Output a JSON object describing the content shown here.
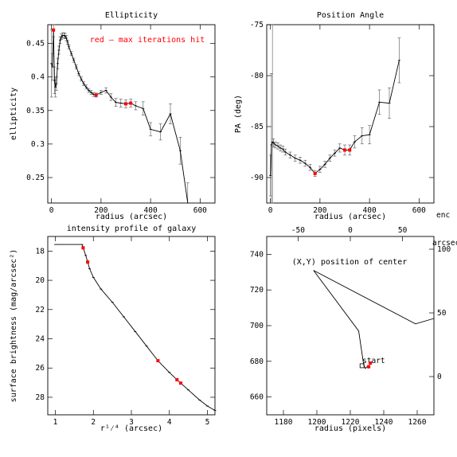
{
  "colors": {
    "axis": "#000000",
    "curve": "#000000",
    "error_bar": "#555555",
    "highlight": "#ff0000"
  },
  "chart_data": [
    {
      "id": "ellipticity",
      "type": "line",
      "title": "Ellipticity",
      "xlabel": "radius (arcsec)",
      "ylabel": "ellipticity",
      "xlim": [
        -15,
        660
      ],
      "ylim": [
        0.212,
        0.478
      ],
      "xticks": [
        0,
        200,
        400,
        600
      ],
      "yticks": [
        0.25,
        0.3,
        0.35,
        0.4,
        0.45
      ],
      "ytick_labels": [
        "0.25",
        "0.3",
        "0.35",
        "0.4",
        "0.45"
      ],
      "annotation": "red – max iterations hit",
      "x": [
        0,
        4,
        8,
        12,
        16,
        20,
        25,
        30,
        35,
        40,
        45,
        50,
        55,
        60,
        65,
        70,
        80,
        90,
        100,
        110,
        120,
        130,
        140,
        150,
        160,
        170,
        180,
        200,
        220,
        240,
        260,
        280,
        300,
        320,
        340,
        370,
        400,
        440,
        480,
        520,
        550
      ],
      "y": [
        0.42,
        0.415,
        0.47,
        0.395,
        0.385,
        0.39,
        0.42,
        0.44,
        0.455,
        0.46,
        0.462,
        0.462,
        0.461,
        0.458,
        0.452,
        0.445,
        0.435,
        0.425,
        0.415,
        0.405,
        0.397,
        0.39,
        0.385,
        0.38,
        0.377,
        0.374,
        0.373,
        0.377,
        0.38,
        0.37,
        0.362,
        0.361,
        0.36,
        0.361,
        0.357,
        0.353,
        0.322,
        0.318,
        0.345,
        0.29,
        0.212
      ],
      "err": [
        0.05,
        0.02,
        0.01,
        0.02,
        0.015,
        0.01,
        0.008,
        0.006,
        0.005,
        0.004,
        0.004,
        0.004,
        0.004,
        0.004,
        0.003,
        0.003,
        0.003,
        0.003,
        0.003,
        0.003,
        0.003,
        0.003,
        0.003,
        0.003,
        0.003,
        0.003,
        0.003,
        0.003,
        0.004,
        0.005,
        0.006,
        0.006,
        0.006,
        0.006,
        0.006,
        0.01,
        0.01,
        0.012,
        0.015,
        0.02,
        0.03
      ],
      "highlighted_x": [
        8,
        180,
        300,
        320
      ]
    },
    {
      "id": "position_angle",
      "type": "line",
      "title": "Position Angle",
      "xlabel": "radius (arcsec)",
      "ylabel": "PA (deg)",
      "xlim": [
        -15,
        660
      ],
      "ylim": [
        -92.5,
        -75
      ],
      "xticks": [
        0,
        200,
        400,
        600
      ],
      "yticks": [
        -90,
        -85,
        -80,
        -75
      ],
      "x": [
        0,
        4,
        8,
        12,
        20,
        30,
        40,
        50,
        60,
        80,
        100,
        120,
        140,
        160,
        180,
        200,
        220,
        240,
        260,
        280,
        300,
        320,
        340,
        370,
        400,
        440,
        480,
        520
      ],
      "y": [
        -89.8,
        -86.8,
        -86.5,
        -86.6,
        -86.8,
        -86.9,
        -87.1,
        -87.2,
        -87.5,
        -87.8,
        -88.1,
        -88.3,
        -88.6,
        -89.0,
        -89.6,
        -89.2,
        -88.7,
        -88.1,
        -87.6,
        -87.1,
        -87.3,
        -87.3,
        -86.5,
        -85.9,
        -85.8,
        -82.6,
        -82.7,
        -78.5
      ],
      "err": [
        2.0,
        7.0,
        20.0,
        0.4,
        0.3,
        0.3,
        0.3,
        0.3,
        0.3,
        0.3,
        0.3,
        0.3,
        0.3,
        0.3,
        0.3,
        0.3,
        0.3,
        0.3,
        0.3,
        0.4,
        0.5,
        0.5,
        0.6,
        0.8,
        0.9,
        1.2,
        1.5,
        2.2
      ],
      "highlighted_x": [
        180,
        300,
        320
      ]
    },
    {
      "id": "intensity_profile",
      "type": "line",
      "title": "intensity profile of galaxy",
      "xlabel": "r¹⁄⁴ (arcsec)",
      "ylabel": "surface brightness (mag/arcsec²)",
      "xlim": [
        0.8,
        5.2
      ],
      "ylim": [
        29.2,
        17.0
      ],
      "xticks": [
        1,
        2,
        3,
        4,
        5
      ],
      "yticks": [
        18,
        20,
        22,
        24,
        26,
        28
      ],
      "x": [
        1.0,
        1.7,
        1.8,
        1.9,
        2.0,
        2.2,
        2.5,
        2.8,
        3.1,
        3.4,
        3.7,
        4.0,
        4.2,
        4.5,
        4.8,
        5.0,
        5.2
      ],
      "y": [
        17.55,
        17.55,
        18.3,
        19.2,
        19.8,
        20.6,
        21.5,
        22.5,
        23.5,
        24.5,
        25.5,
        26.3,
        26.8,
        27.5,
        28.2,
        28.6,
        28.9
      ],
      "highlighted_x": [
        1.73,
        1.85,
        3.7,
        4.2,
        4.3
      ]
    },
    {
      "id": "center_position",
      "type": "line",
      "title": "",
      "annotation": "(X,Y) position of center",
      "start_label": "start",
      "xlabel": "radius (pixels)",
      "ylabel": "",
      "top_axis_label": "",
      "right_axis_label": "arcsec",
      "corner_label": "enc",
      "xlim": [
        1170,
        1270
      ],
      "ylim": [
        650,
        750
      ],
      "xticks": [
        1180,
        1200,
        1220,
        1240,
        1260
      ],
      "yticks": [
        660,
        680,
        700,
        720,
        740
      ],
      "top_ticks": [
        -50,
        0,
        50
      ],
      "right_ticks": [
        0,
        50,
        100
      ],
      "x": [
        1231,
        1230,
        1229,
        1228,
        1225,
        1198,
        1259,
        1270
      ],
      "y": [
        676,
        677,
        676,
        678,
        697,
        731,
        701,
        704
      ],
      "highlighted_x": [
        1231,
        1232
      ]
    }
  ]
}
